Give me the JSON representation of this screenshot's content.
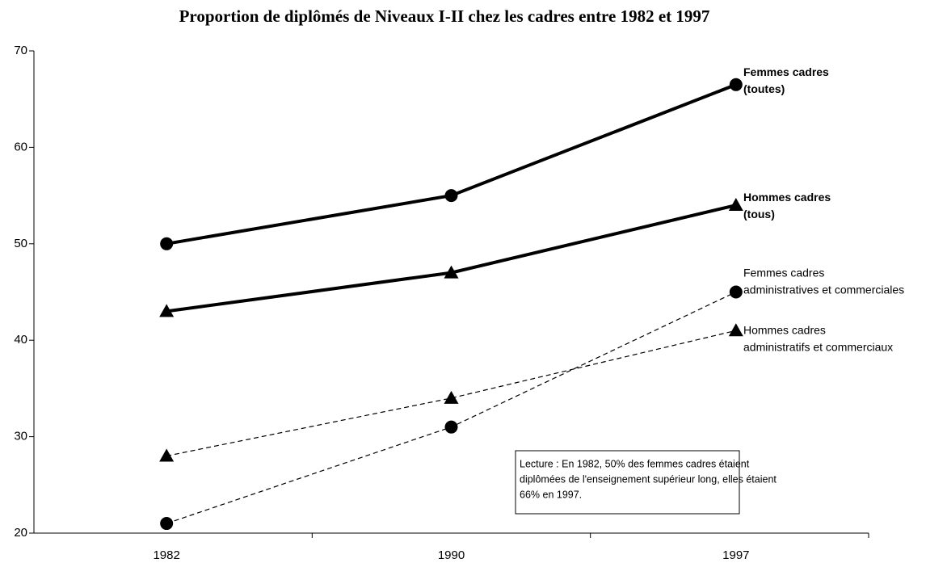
{
  "chart_data": {
    "type": "line",
    "title": "Proportion de diplômés de Niveaux I-II chez les cadres entre 1982 et 1997",
    "categories": [
      "1982",
      "1990",
      "1997"
    ],
    "series": [
      {
        "name": "Femmes cadres\n(toutes)",
        "color": "#000000",
        "marker": "circle",
        "dashed": false,
        "bold": true,
        "values": [
          50,
          55,
          66.5
        ]
      },
      {
        "name": "Hommes cadres\n(tous)",
        "color": "#000000",
        "marker": "triangle",
        "dashed": false,
        "bold": true,
        "values": [
          43,
          47,
          54
        ]
      },
      {
        "name": "Femmes cadres\nadministratives et commerciales",
        "color": "#000000",
        "marker": "circle",
        "dashed": true,
        "bold": false,
        "values": [
          21,
          31,
          45
        ]
      },
      {
        "name": "Hommes cadres\nadministratifs et commerciaux",
        "color": "#000000",
        "marker": "triangle",
        "dashed": true,
        "bold": false,
        "values": [
          28,
          34,
          41
        ]
      }
    ],
    "annotation": [
      "Lecture : En 1982, 50% des femmes cadres étaient",
      "diplômées de l'enseignement supérieur long, elles étaient",
      "66% en 1997."
    ],
    "ylim": [
      20,
      70
    ],
    "yticks": [
      20,
      30,
      40,
      50,
      60,
      70
    ],
    "grid": false
  }
}
